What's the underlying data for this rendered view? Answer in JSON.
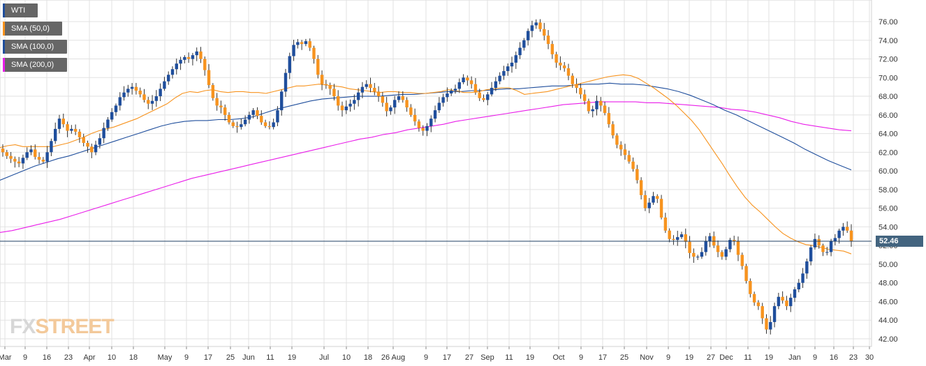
{
  "chart_data": {
    "type": "candlestick",
    "instrument": "WTI",
    "ylim": [
      41,
      77
    ],
    "y_ticks": [
      "42.00",
      "44.00",
      "46.00",
      "48.00",
      "50.00",
      "52.00",
      "54.00",
      "56.00",
      "58.00",
      "60.00",
      "62.00",
      "64.00",
      "66.00",
      "68.00",
      "70.00",
      "72.00",
      "74.00",
      "76.00"
    ],
    "x_ticks": [
      "Mar",
      "9",
      "16",
      "23",
      "Apr",
      "10",
      "18",
      "May",
      "9",
      "17",
      "25",
      "Jun",
      "11",
      "19",
      "Jul",
      "10",
      "18",
      "26 Aug",
      "9",
      "17",
      "27",
      "Sep",
      "11",
      "19",
      "Oct",
      "9",
      "17",
      "25",
      "Nov",
      "9",
      "19",
      "27",
      "Dec",
      "11",
      "19",
      "Jan",
      "9",
      "16",
      "23",
      "30"
    ],
    "last_price": "52.46",
    "last_price_value": 52.46,
    "legend": [
      {
        "label": "WTI",
        "color": "#1f4e9c"
      },
      {
        "label": "SMA (50,0)",
        "color": "#f7931e"
      },
      {
        "label": "SMA (100,0)",
        "color": "#1f4e9c"
      },
      {
        "label": "SMA (200,0)",
        "color": "#e91ee9"
      }
    ],
    "colors": {
      "up": "#1f4e9c",
      "down": "#f7931e",
      "sma50": "#f7931e",
      "sma100": "#1f4e9c",
      "sma200": "#e91ee9",
      "grid": "#e2e2e2"
    },
    "close_path": [
      62.0,
      61.6,
      61.3,
      61.0,
      60.8,
      61.4,
      62.0,
      62.3,
      61.5,
      61.2,
      61.0,
      62.0,
      63.2,
      64.5,
      65.6,
      65.0,
      64.3,
      64.5,
      64.2,
      63.6,
      63.0,
      62.6,
      62.0,
      62.8,
      63.5,
      64.6,
      65.5,
      66.3,
      67.0,
      67.9,
      68.4,
      68.8,
      69.0,
      68.6,
      68.2,
      67.6,
      67.2,
      67.5,
      68.0,
      68.8,
      69.6,
      70.3,
      70.9,
      71.5,
      71.9,
      72.2,
      72.0,
      72.4,
      72.8,
      72.0,
      70.8,
      69.2,
      67.8,
      67.0,
      66.8,
      66.0,
      65.2,
      64.8,
      64.7,
      65.0,
      65.5,
      66.0,
      66.5,
      65.9,
      65.2,
      64.8,
      64.7,
      65.2,
      66.5,
      68.5,
      70.5,
      72.3,
      73.5,
      73.8,
      73.6,
      73.9,
      73.2,
      72.0,
      70.3,
      69.3,
      69.2,
      68.8,
      68.0,
      67.0,
      66.5,
      66.9,
      67.2,
      67.6,
      68.4,
      69.0,
      69.3,
      68.9,
      68.5,
      68.0,
      67.3,
      66.4,
      66.8,
      67.6,
      68.0,
      67.6,
      66.8,
      66.0,
      65.3,
      64.6,
      64.3,
      64.8,
      65.6,
      66.5,
      67.3,
      67.9,
      68.3,
      68.6,
      68.8,
      69.5,
      70.0,
      69.7,
      69.3,
      68.4,
      67.8,
      67.6,
      68.2,
      68.9,
      69.6,
      70.2,
      70.7,
      71.2,
      71.6,
      72.4,
      73.2,
      74.0,
      75.0,
      75.6,
      75.9,
      75.2,
      74.5,
      73.6,
      72.5,
      71.6,
      71.3,
      71.0,
      70.2,
      69.3,
      68.9,
      68.2,
      67.5,
      66.4,
      66.6,
      67.5,
      67.0,
      66.2,
      65.0,
      63.8,
      62.8,
      62.3,
      61.7,
      61.0,
      60.2,
      59.0,
      57.4,
      56.0,
      56.6,
      57.3,
      57.0,
      55.0,
      53.6,
      52.7,
      52.6,
      52.9,
      53.2,
      52.4,
      51.2,
      50.8,
      50.8,
      51.3,
      52.5,
      53.0,
      52.0,
      51.3,
      50.8,
      51.6,
      52.6,
      52.5,
      51.0,
      49.8,
      48.2,
      46.8,
      45.9,
      45.5,
      44.2,
      43.0,
      43.8,
      45.5,
      46.5,
      46.1,
      45.5,
      46.4,
      47.3,
      48.0,
      49.0,
      50.3,
      51.8,
      52.7,
      52.0,
      51.3,
      51.3,
      52.5,
      52.8,
      53.6,
      54.0,
      53.6,
      52.46
    ],
    "sma50_path": [
      62.5,
      62.7,
      62.8,
      62.6,
      62.6,
      62.6,
      62.6,
      62.6,
      62.8,
      63.0,
      63.3,
      63.6,
      64.0,
      64.3,
      64.5,
      64.7,
      65.0,
      65.3,
      65.6,
      66.0,
      66.4,
      66.8,
      67.2,
      67.8,
      68.3,
      68.5,
      68.4,
      68.6,
      68.7,
      68.5,
      68.4,
      68.5,
      68.5,
      68.4,
      68.4,
      68.3,
      68.5,
      68.7,
      68.9,
      69.1,
      69.1,
      69.2,
      69.3,
      69.2,
      69.1,
      69.0,
      68.8,
      68.7,
      68.6,
      68.5,
      68.4,
      68.5,
      68.5,
      68.4,
      68.4,
      68.3,
      68.3,
      68.4,
      68.5,
      68.7,
      68.6,
      68.4,
      68.4,
      68.5,
      68.7,
      68.8,
      68.9,
      68.9,
      68.6,
      68.2,
      68.3,
      68.4,
      68.5,
      68.7,
      68.9,
      69.1,
      69.3,
      69.5,
      69.7,
      69.9,
      70.1,
      70.2,
      70.3,
      70.2,
      69.9,
      69.4,
      68.9,
      68.3,
      67.7,
      67.0,
      66.2,
      65.4,
      64.4,
      63.2,
      62.0,
      60.8,
      59.5,
      58.3,
      57.2,
      56.3,
      55.6,
      54.8,
      54.0,
      53.3,
      52.8,
      52.4,
      52.1,
      52.0,
      51.8,
      51.6,
      51.5,
      51.4,
      51.1
    ],
    "sma100_path": [
      59.0,
      59.5,
      60.0,
      60.5,
      60.9,
      61.3,
      61.6,
      62.0,
      62.4,
      62.8,
      63.2,
      63.6,
      64.0,
      64.4,
      64.8,
      65.1,
      65.3,
      65.4,
      65.4,
      65.5,
      65.5,
      65.6,
      65.8,
      66.2,
      66.6,
      66.9,
      67.2,
      67.5,
      67.7,
      67.8,
      67.9,
      68.0,
      68.0,
      68.0,
      68.1,
      68.2,
      68.2,
      68.3,
      68.4,
      68.5,
      68.5,
      68.6,
      68.6,
      68.7,
      68.8,
      68.8,
      68.9,
      69.0,
      69.1,
      69.1,
      69.2,
      69.3,
      69.3,
      69.4,
      69.3,
      69.3,
      69.2,
      69.0,
      68.8,
      68.5,
      68.1,
      67.6,
      67.1,
      66.5,
      66.0,
      65.4,
      64.8,
      64.2,
      63.6,
      63.0,
      62.3,
      61.7,
      61.1,
      60.6,
      60.1
    ],
    "sma200_path": [
      53.4,
      53.6,
      53.9,
      54.2,
      54.5,
      54.8,
      55.2,
      55.6,
      56.0,
      56.4,
      56.8,
      57.2,
      57.6,
      58.0,
      58.4,
      58.8,
      59.2,
      59.5,
      59.8,
      60.1,
      60.4,
      60.7,
      61.0,
      61.3,
      61.6,
      61.9,
      62.2,
      62.5,
      62.8,
      63.1,
      63.4,
      63.6,
      63.9,
      64.1,
      64.4,
      64.6,
      64.8,
      65.0,
      65.3,
      65.5,
      65.7,
      65.9,
      66.1,
      66.3,
      66.5,
      66.7,
      66.9,
      67.1,
      67.2,
      67.3,
      67.4,
      67.4,
      67.4,
      67.4,
      67.3,
      67.3,
      67.2,
      67.1,
      67.0,
      66.9,
      66.8,
      66.6,
      66.5,
      66.3,
      66.0,
      65.7,
      65.3,
      65.0,
      64.8,
      64.6,
      64.4,
      64.3
    ]
  }
}
